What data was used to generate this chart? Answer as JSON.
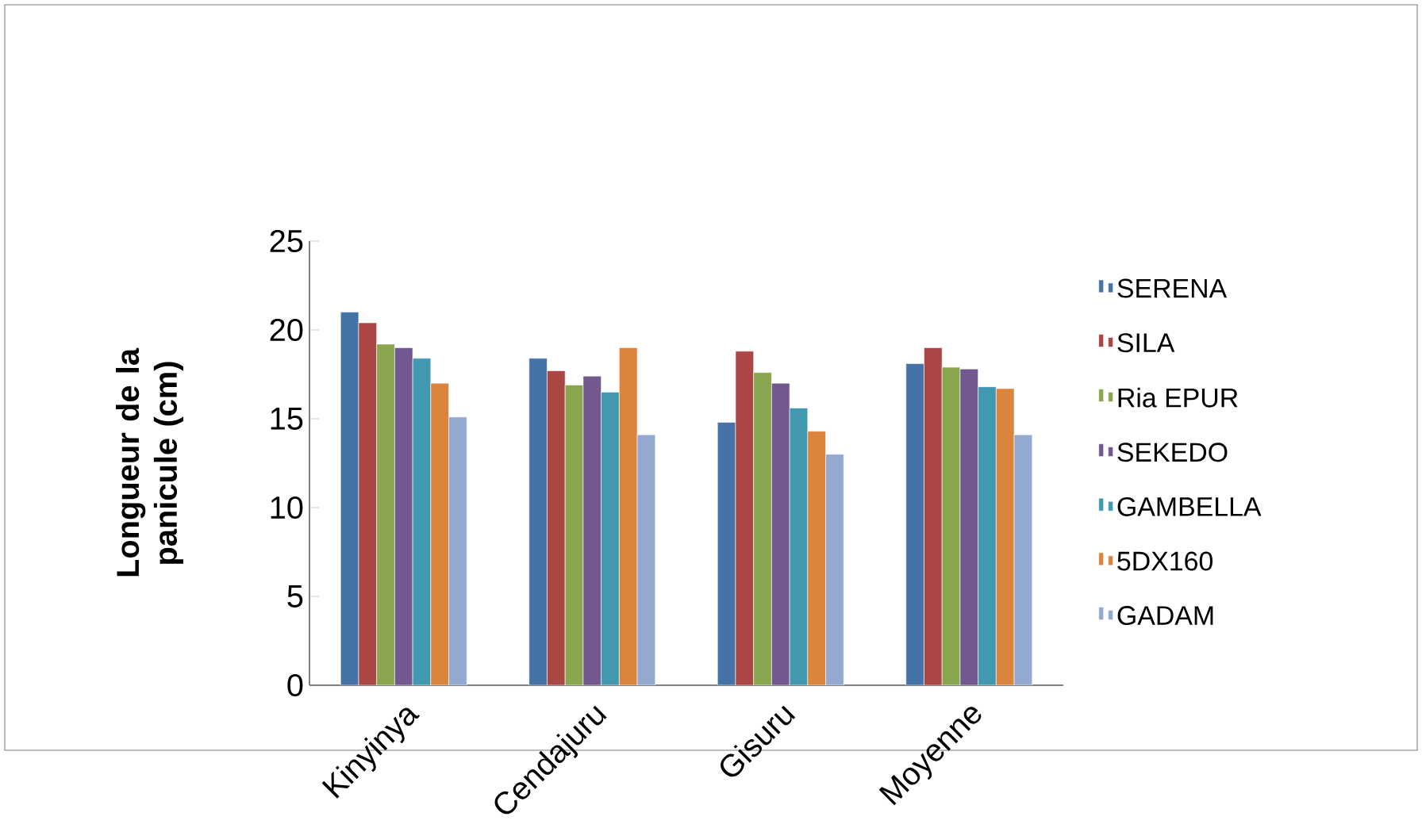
{
  "chart_data": {
    "type": "bar",
    "ylabel": "Longueur de la panicule (cm)",
    "categories": [
      "Kinyinya",
      "Cendajuru",
      "Gisuru",
      "Moyenne"
    ],
    "series": [
      {
        "name": "SERENA",
        "color": "#4572a7",
        "values": [
          21.0,
          18.4,
          14.8,
          18.1
        ]
      },
      {
        "name": "SILA",
        "color": "#aa4643",
        "values": [
          20.4,
          17.7,
          18.8,
          19.0
        ]
      },
      {
        "name": "Ria EPUR",
        "color": "#89a54e",
        "values": [
          19.2,
          16.9,
          17.6,
          17.9
        ]
      },
      {
        "name": "SEKEDO",
        "color": "#71588f",
        "values": [
          19.0,
          17.4,
          17.0,
          17.8
        ]
      },
      {
        "name": "GAMBELLA",
        "color": "#4198af",
        "values": [
          18.4,
          16.5,
          15.6,
          16.8
        ]
      },
      {
        "name": "5DX160",
        "color": "#db843d",
        "values": [
          17.0,
          19.0,
          14.3,
          16.7
        ]
      },
      {
        "name": "GADAM",
        "color": "#93a9cf",
        "values": [
          15.1,
          14.1,
          13.0,
          14.1
        ]
      }
    ],
    "ylim": [
      0,
      25
    ],
    "yticks": [
      0,
      5,
      10,
      15,
      20,
      25
    ],
    "legend": "right"
  }
}
